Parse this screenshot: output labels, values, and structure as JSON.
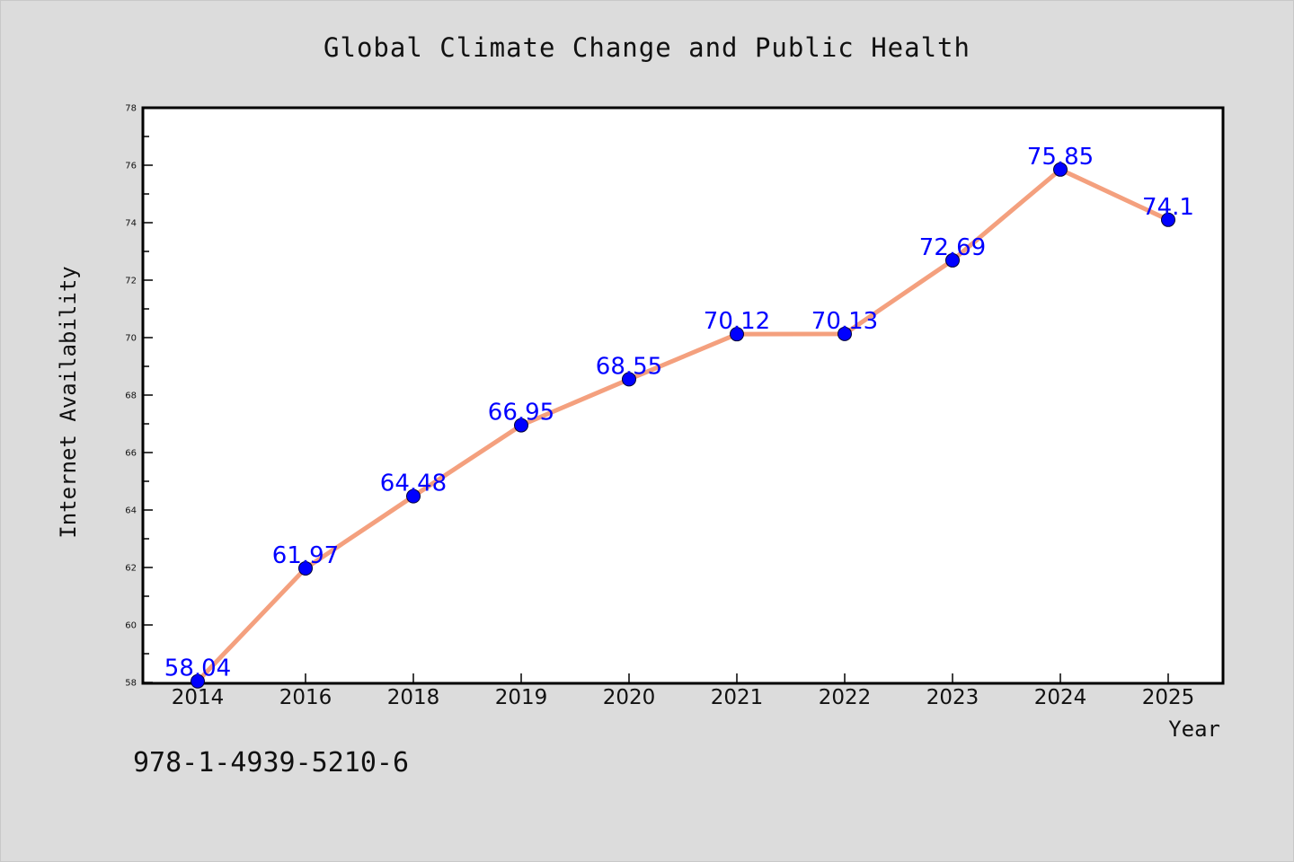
{
  "chart_data": {
    "type": "line",
    "title": "Global Climate Change and Public Health",
    "xlabel": "Year",
    "ylabel": "Internet Availability",
    "categories": [
      "2014",
      "2016",
      "2018",
      "2019",
      "2020",
      "2021",
      "2022",
      "2023",
      "2024",
      "2025"
    ],
    "series": [
      {
        "values": [
          58.04,
          61.97,
          64.48,
          66.95,
          68.55,
          70.12,
          70.13,
          72.69,
          75.85,
          74.1
        ],
        "line_color": "#f4a07e",
        "marker_color": "#0000ff"
      }
    ],
    "data_labels": [
      "58.04",
      "61.97",
      "64.48",
      "66.95",
      "68.55",
      "70.12",
      "70.13",
      "72.69",
      "75.85",
      "74.1"
    ],
    "yticks": [
      "58",
      "60",
      "62",
      "64",
      "66",
      "68",
      "70",
      "72",
      "74",
      "76",
      "78"
    ],
    "ylim": [
      58,
      78
    ],
    "grid": false,
    "legend": "none",
    "label_color": "#0000ff",
    "background": "#dcdcdc",
    "plot_background": "#ffffff"
  },
  "footer": {
    "isbn": "978-1-4939-5210-6"
  }
}
